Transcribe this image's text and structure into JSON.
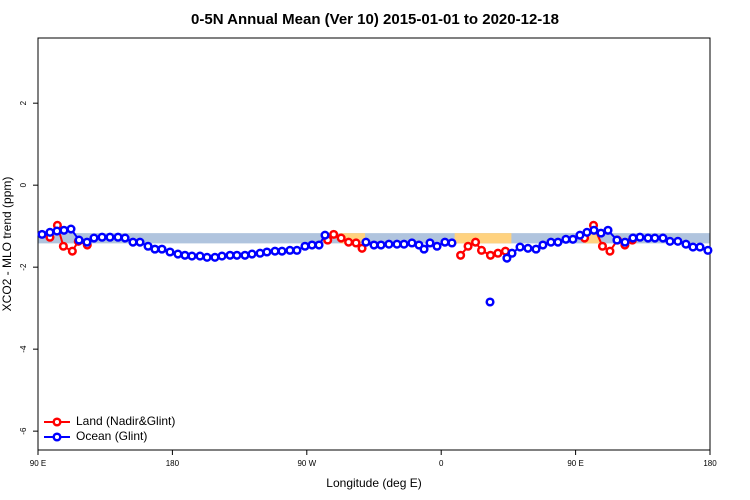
{
  "chart_data": {
    "type": "scatter",
    "title": "0-5N Annual Mean (Ver 10)   2015-01-01 to 2020-12-18",
    "x_label": "Longitude (deg E)",
    "y_label": "XCO2 - MLO trend (ppm)",
    "xlim": [
      90,
      540
    ],
    "ylim": [
      -6.46,
      3.59
    ],
    "xticks": [
      {
        "value": 90,
        "label": "90 E"
      },
      180,
      {
        "value": 270,
        "label": "90 W"
      },
      {
        "value": 360,
        "label": "0"
      },
      {
        "value": 450,
        "label": "90 E"
      },
      {
        "value": 540,
        "label": "180"
      }
    ],
    "yticks": [
      -6,
      -4,
      -2,
      0,
      2
    ],
    "band": {
      "ylim": [
        -1.42,
        -1.17
      ],
      "color": "#b0c4de"
    },
    "highlights": [
      {
        "xlim": [
          292,
          309
        ],
        "color": "#ffd27f"
      },
      {
        "xlim": [
          369,
          407
        ],
        "color": "#ffd27f"
      },
      {
        "xlim": [
          456,
          466
        ],
        "color": "#ffd27f"
      }
    ],
    "legend": "bottom-left",
    "series": [
      {
        "name": "Land (Nadir&Glint)",
        "color": "#ff0000",
        "x": [
          98,
          103,
          107,
          113,
          117,
          123,
          null,
          284,
          288,
          293,
          298,
          303,
          307,
          null,
          373,
          378,
          383,
          387,
          393,
          398,
          403,
          null,
          456,
          462,
          468,
          473,
          478,
          483,
          488
        ],
        "values": [
          -1.27,
          -0.98,
          -1.49,
          -1.61,
          -1.37,
          -1.46,
          null,
          -1.34,
          -1.2,
          -1.29,
          -1.39,
          -1.41,
          -1.54,
          null,
          -1.71,
          -1.49,
          -1.39,
          -1.59,
          -1.71,
          -1.66,
          -1.61,
          null,
          -1.29,
          -0.98,
          -1.49,
          -1.61,
          -1.34,
          -1.46,
          -1.34
        ]
      },
      {
        "name": "Ocean (Glint)",
        "color": "#0000ff",
        "x": [
          92.7,
          98,
          102.7,
          107.4,
          112.1,
          117.5,
          122.8,
          127.5,
          132.9,
          138.2,
          143.6,
          148.3,
          153.6,
          158.3,
          163.7,
          168.3,
          173,
          178.4,
          183.7,
          188.4,
          193.1,
          198.5,
          203.2,
          208.5,
          213.2,
          218.6,
          223.2,
          228.6,
          233.3,
          238.7,
          243.3,
          248.7,
          253.4,
          258.7,
          263.4,
          268.8,
          273.5,
          278.2,
          282.2,
          null,
          309.6,
          315,
          319.7,
          325,
          330.4,
          335.1,
          340.4,
          345.1,
          348.5,
          352.5,
          357.2,
          362.5,
          367.2,
          null,
          392.7,
          null,
          404,
          407.4,
          412.8,
          418.1,
          423.5,
          428.1,
          433.5,
          438.2,
          443.5,
          448.2,
          452.9,
          457.6,
          462.3,
          467,
          471.7,
          477.7,
          483.1,
          488.4,
          493.1,
          498.5,
          503.1,
          508.5,
          513.2,
          518.5,
          523.9,
          528.6,
          533.3,
          538.6
        ],
        "values": [
          -1.2,
          -1.15,
          -1.12,
          -1.1,
          -1.07,
          -1.34,
          -1.39,
          -1.29,
          -1.27,
          -1.27,
          -1.27,
          -1.29,
          -1.39,
          -1.39,
          -1.49,
          -1.56,
          -1.56,
          -1.63,
          -1.68,
          -1.71,
          -1.73,
          -1.73,
          -1.76,
          -1.76,
          -1.73,
          -1.71,
          -1.71,
          -1.71,
          -1.68,
          -1.66,
          -1.63,
          -1.61,
          -1.61,
          -1.59,
          -1.59,
          -1.49,
          -1.46,
          -1.46,
          -1.22,
          null,
          -1.39,
          -1.46,
          -1.46,
          -1.44,
          -1.44,
          -1.44,
          -1.41,
          -1.46,
          -1.56,
          -1.41,
          -1.49,
          -1.39,
          -1.41,
          null,
          -2.85,
          null,
          -1.78,
          -1.66,
          -1.51,
          -1.54,
          -1.56,
          -1.46,
          -1.39,
          -1.39,
          -1.32,
          -1.32,
          -1.22,
          -1.15,
          -1.1,
          -1.17,
          -1.1,
          -1.34,
          -1.39,
          -1.29,
          -1.27,
          -1.29,
          -1.29,
          -1.29,
          -1.37,
          -1.37,
          -1.44,
          -1.51,
          -1.51,
          -1.59
        ]
      }
    ]
  }
}
